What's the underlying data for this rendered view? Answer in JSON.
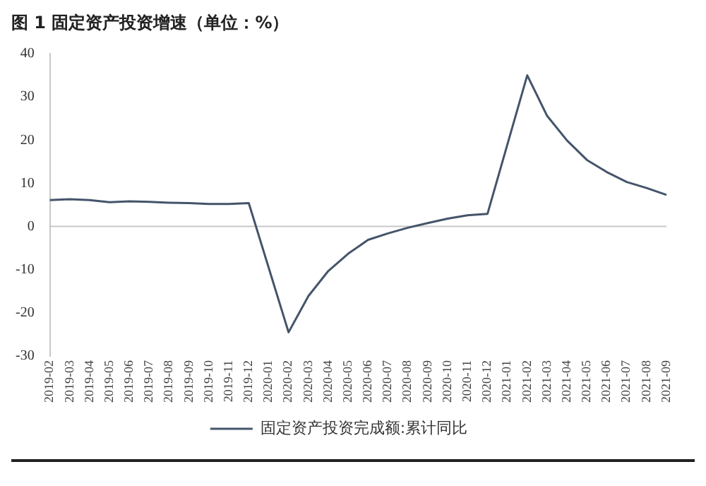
{
  "chart_data": {
    "type": "line",
    "title": "图 1 固定资产投资增速（单位：%）",
    "categories": [
      "2019-02",
      "2019-03",
      "2019-04",
      "2019-05",
      "2019-06",
      "2019-07",
      "2019-08",
      "2019-09",
      "2019-10",
      "2019-11",
      "2019-12",
      "2020-01",
      "2020-02",
      "2020-03",
      "2020-04",
      "2020-05",
      "2020-06",
      "2020-07",
      "2020-08",
      "2020-09",
      "2020-10",
      "2020-11",
      "2020-12",
      "2021-01",
      "2021-02",
      "2021-03",
      "2021-04",
      "2021-05",
      "2021-06",
      "2021-07",
      "2021-08",
      "2021-09"
    ],
    "series": [
      {
        "name": "固定资产投资完成额:累计同比",
        "color": "#44546a",
        "values": [
          6.1,
          6.3,
          6.1,
          5.6,
          5.8,
          5.7,
          5.5,
          5.4,
          5.2,
          5.2,
          5.4,
          null,
          -24.5,
          -16.1,
          -10.3,
          -6.3,
          -3.1,
          -1.6,
          -0.3,
          0.8,
          1.8,
          2.6,
          2.9,
          null,
          35.0,
          25.6,
          19.9,
          15.4,
          12.6,
          10.3,
          8.9,
          7.3
        ]
      }
    ],
    "ylim": [
      -30,
      40
    ],
    "yticks": [
      -30,
      -20,
      -10,
      0,
      10,
      20,
      30,
      40
    ],
    "ref_lines": [
      {
        "axis": "y",
        "value": 0,
        "color": "#c8c8c8"
      }
    ],
    "grid": false,
    "legend": "bottom",
    "marker": "none",
    "line_style": "solid"
  }
}
